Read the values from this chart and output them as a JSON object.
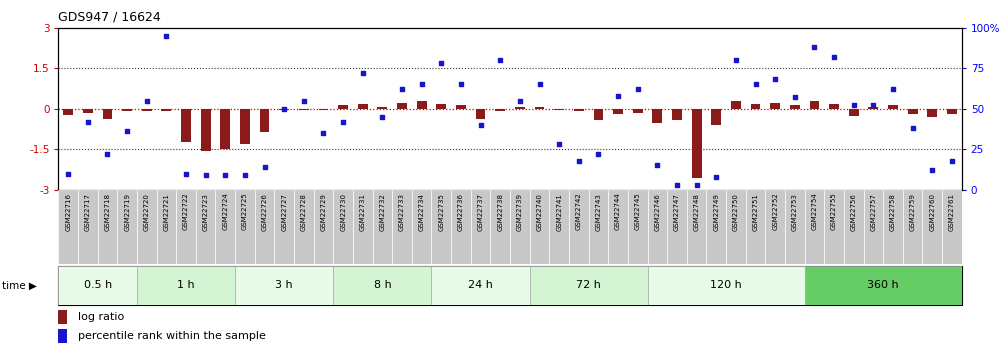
{
  "title": "GDS947 / 16624",
  "samples": [
    "GSM22716",
    "GSM22717",
    "GSM22718",
    "GSM22719",
    "GSM22720",
    "GSM22721",
    "GSM22722",
    "GSM22723",
    "GSM22724",
    "GSM22725",
    "GSM22726",
    "GSM22727",
    "GSM22728",
    "GSM22729",
    "GSM22730",
    "GSM22731",
    "GSM22732",
    "GSM22733",
    "GSM22734",
    "GSM22735",
    "GSM22736",
    "GSM22737",
    "GSM22738",
    "GSM22739",
    "GSM22740",
    "GSM22741",
    "GSM22742",
    "GSM22743",
    "GSM22744",
    "GSM22745",
    "GSM22746",
    "GSM22747",
    "GSM22748",
    "GSM22749",
    "GSM22750",
    "GSM22751",
    "GSM22752",
    "GSM22753",
    "GSM22754",
    "GSM22755",
    "GSM22756",
    "GSM22757",
    "GSM22758",
    "GSM22759",
    "GSM22760",
    "GSM22761"
  ],
  "log_ratio": [
    -0.25,
    -0.15,
    -0.38,
    -0.1,
    -0.1,
    -0.1,
    -1.22,
    -1.58,
    -1.48,
    -1.32,
    -0.88,
    -0.05,
    -0.05,
    -0.05,
    0.12,
    0.18,
    0.08,
    0.22,
    0.3,
    0.18,
    0.12,
    -0.38,
    -0.1,
    0.05,
    0.08,
    -0.05,
    -0.08,
    -0.42,
    -0.2,
    -0.15,
    -0.52,
    -0.42,
    -2.55,
    -0.62,
    0.28,
    0.18,
    0.22,
    0.12,
    0.28,
    0.18,
    -0.28,
    0.08,
    0.12,
    -0.18,
    -0.32,
    -0.18
  ],
  "percentile": [
    10,
    42,
    22,
    36,
    55,
    95,
    10,
    9,
    9,
    9,
    14,
    50,
    55,
    35,
    42,
    72,
    45,
    62,
    65,
    78,
    65,
    40,
    80,
    55,
    65,
    28,
    18,
    22,
    58,
    62,
    15,
    3,
    3,
    8,
    80,
    65,
    68,
    57,
    88,
    82,
    52,
    52,
    62,
    38,
    12,
    18
  ],
  "time_groups": [
    {
      "label": "0.5 h",
      "start": 0,
      "count": 4,
      "shade": "#e8fbe8"
    },
    {
      "label": "1 h",
      "start": 4,
      "count": 5,
      "shade": "#d4f5d4"
    },
    {
      "label": "3 h",
      "start": 9,
      "count": 5,
      "shade": "#e8fbe8"
    },
    {
      "label": "8 h",
      "start": 14,
      "count": 5,
      "shade": "#d4f5d4"
    },
    {
      "label": "24 h",
      "start": 19,
      "count": 5,
      "shade": "#e8fbe8"
    },
    {
      "label": "72 h",
      "start": 24,
      "count": 6,
      "shade": "#d4f5d4"
    },
    {
      "label": "120 h",
      "start": 30,
      "count": 8,
      "shade": "#e8fbe8"
    },
    {
      "label": "360 h",
      "start": 38,
      "count": 8,
      "shade": "#66cc66"
    }
  ],
  "bar_color": "#8b1a1a",
  "dot_color": "#1515cd",
  "xlim": [
    -0.5,
    45.5
  ],
  "ylim_left": [
    -3,
    3
  ],
  "ylim_right": [
    0,
    100
  ],
  "left_yticks": [
    -3,
    -1.5,
    0,
    1.5,
    3
  ],
  "right_yticks": [
    0,
    25,
    50,
    75,
    100
  ],
  "right_yticklabels": [
    "0",
    "25",
    "50",
    "75",
    "100%"
  ],
  "hline_zero_color": "#cc0000",
  "hline_dotted_color": "#333333",
  "label_bg": "#cccccc",
  "bar_width": 0.5
}
